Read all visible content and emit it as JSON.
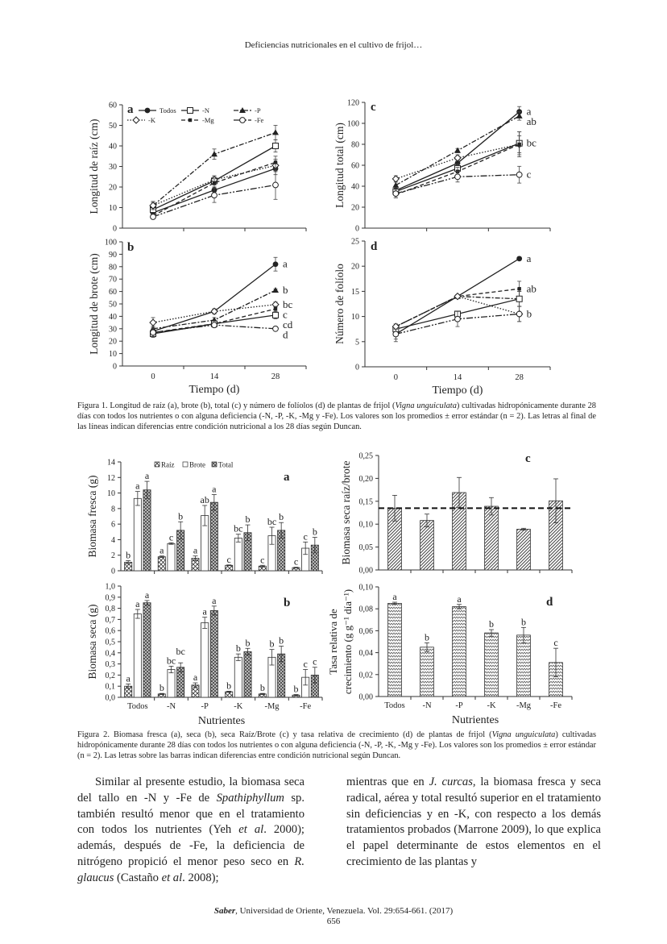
{
  "header": {
    "running_title": "Deficiencias nutricionales en el cultivo de frijol…"
  },
  "figure1": {
    "caption": [
      "Figura 1. Longitud de raíz (a), brote (b), total (c) y número de folíolos (d) de plantas de frijol (",
      "Vigna unguiculata",
      ") cultivadas hidropónicamente durante 28 días con todos los nutrientes o con alguna deficiencia (-N, -P, -K, -Mg y -Fe). Los valores son los promedios ± error estándar (n = 2). Las letras al final de las líneas indican diferencias entre condición nutricional a los 28 días según Duncan."
    ]
  },
  "figure2": {
    "caption": [
      "Figura 2. Biomasa fresca (a), seca (b), seca Raíz/Brote (c) y tasa relativa de crecimiento (d) de plantas de frijol (",
      "Vigna unguiculata",
      ") cultivadas hidropónicamente durante 28 días con todos los nutrientes o con alguna deficiencia (-N, -P, -K, -Mg y -Fe). Los valores son los promedios ± error estándar (n = 2). Las letras sobre las barras indican diferencias entre condición nutricional según Duncan."
    ]
  },
  "chart_data": [
    {
      "type": "line",
      "panel": "a",
      "ylabel": "Longitud de raíz (cm)",
      "xlabel": "",
      "x": [
        0,
        14,
        28
      ],
      "ylim": [
        0,
        60
      ],
      "y_ticks": [
        "0",
        "10",
        "20",
        "30",
        "40",
        "50",
        "60"
      ],
      "legend": "top-left",
      "series": [
        {
          "name": "Todos",
          "marker": "circle-filled",
          "dash": "solid",
          "values": [
            7.5,
            18.5,
            29
          ],
          "err": [
            1,
            1.5,
            3
          ]
        },
        {
          "name": "-N",
          "marker": "square-open",
          "dash": "solid",
          "values": [
            9,
            23,
            40
          ],
          "err": [
            1,
            2,
            3
          ]
        },
        {
          "name": "-P",
          "marker": "triangle-filled",
          "dash": "dash-dot",
          "values": [
            11,
            36,
            46.5
          ],
          "err": [
            1.5,
            2.5,
            3.5
          ]
        },
        {
          "name": "-K",
          "marker": "diamond-open",
          "dash": "dotted",
          "values": [
            11,
            23.5,
            30.5
          ],
          "err": [
            2,
            2,
            3
          ]
        },
        {
          "name": "-Mg",
          "marker": "square-small-filled",
          "dash": "dashed",
          "values": [
            6,
            22,
            32
          ],
          "err": [
            1,
            2,
            3
          ]
        },
        {
          "name": "-Fe",
          "marker": "circle-open",
          "dash": "dash-dot-dot",
          "values": [
            5.5,
            16,
            21
          ],
          "err": [
            1,
            3.5,
            7
          ]
        }
      ]
    },
    {
      "type": "line",
      "panel": "b",
      "ylabel": "Longitud de brote (cm)",
      "xlabel": "Tiempo (d)",
      "x": [
        0,
        14,
        28
      ],
      "x_tick_labels": [
        "0",
        "14",
        "28"
      ],
      "ylim": [
        0,
        100
      ],
      "y_ticks": [
        "0",
        "10",
        "20",
        "30",
        "40",
        "50",
        "60",
        "70",
        "80",
        "90",
        "100"
      ],
      "series": [
        {
          "name": "Todos",
          "marker": "circle-filled",
          "dash": "solid",
          "values": [
            28,
            44,
            82
          ],
          "err": [
            2,
            2,
            5.5
          ],
          "end_label": "a"
        },
        {
          "name": "-P",
          "marker": "triangle-filled",
          "dash": "dash-dot",
          "values": [
            30,
            37,
            61
          ],
          "err": [
            2,
            2,
            1
          ],
          "end_label": "b"
        },
        {
          "name": "-K",
          "marker": "diamond-open",
          "dash": "dotted",
          "values": [
            35,
            44,
            49.5
          ],
          "err": [
            4,
            2,
            2
          ],
          "end_label": "bc"
        },
        {
          "name": "-Mg",
          "marker": "square-small-filled",
          "dash": "dashed",
          "values": [
            27,
            34,
            46
          ],
          "err": [
            2,
            2,
            2
          ],
          "end_label": "c"
        },
        {
          "name": "-N",
          "marker": "square-open",
          "dash": "solid",
          "values": [
            26,
            34,
            41
          ],
          "err": [
            3,
            2,
            3
          ],
          "end_label": "cd"
        },
        {
          "name": "-Fe",
          "marker": "circle-open",
          "dash": "dash-dot-dot",
          "values": [
            27,
            33,
            30
          ],
          "err": [
            3,
            2,
            1
          ],
          "end_label": "d"
        }
      ]
    },
    {
      "type": "line",
      "panel": "c",
      "ylabel": "Longitud total (cm)",
      "xlabel": "",
      "x": [
        0,
        14,
        28
      ],
      "ylim": [
        0,
        120
      ],
      "y_ticks": [
        "0",
        "20",
        "40",
        "60",
        "80",
        "100",
        "120"
      ],
      "series": [
        {
          "name": "Todos",
          "marker": "circle-filled",
          "dash": "solid",
          "values": [
            36,
            62,
            111
          ],
          "err": [
            3,
            3,
            5
          ],
          "end_label": "a"
        },
        {
          "name": "-P",
          "marker": "triangle-filled",
          "dash": "dash-dot",
          "values": [
            41,
            74,
            107
          ],
          "err": [
            3,
            2,
            4
          ],
          "end_label": "ab"
        },
        {
          "name": "-K",
          "marker": "diamond-open",
          "dash": "dotted",
          "values": [
            47,
            67,
            80
          ],
          "err": [
            3,
            3,
            12
          ]
        },
        {
          "name": "-N",
          "marker": "square-open",
          "dash": "solid",
          "values": [
            35,
            57,
            81
          ],
          "err": [
            3,
            4,
            11
          ],
          "end_label": "bc"
        },
        {
          "name": "-Mg",
          "marker": "square-small-filled",
          "dash": "dashed",
          "values": [
            32,
            54,
            80
          ],
          "err": [
            3,
            4,
            8
          ]
        },
        {
          "name": "-Fe",
          "marker": "circle-open",
          "dash": "dash-dot-dot",
          "values": [
            33,
            49,
            51
          ],
          "err": [
            4,
            5,
            8
          ],
          "end_label": "c"
        }
      ]
    },
    {
      "type": "line",
      "panel": "d",
      "ylabel": "Número de folíolo",
      "xlabel": "Tiempo (d)",
      "x": [
        0,
        14,
        28
      ],
      "x_tick_labels": [
        "0",
        "14",
        "28"
      ],
      "ylim": [
        0,
        25
      ],
      "y_ticks": [
        "0",
        "5",
        "10",
        "15",
        "20",
        "25"
      ],
      "series": [
        {
          "name": "Todos",
          "marker": "circle-filled",
          "dash": "solid",
          "values": [
            6.5,
            14,
            21.5
          ],
          "err": [
            1.5,
            0.3,
            0.3
          ],
          "end_label": "a"
        },
        {
          "name": "-Mg",
          "marker": "square-small-filled",
          "dash": "dashed",
          "values": [
            8,
            14,
            15.5
          ],
          "err": [
            0.5,
            0.3,
            1.5
          ],
          "end_label": "ab"
        },
        {
          "name": "-P",
          "marker": "triangle-filled",
          "dash": "dash-dot",
          "values": [
            8,
            14,
            13.5
          ],
          "err": [
            0.5,
            0.3,
            1.5
          ]
        },
        {
          "name": "-N",
          "marker": "square-open",
          "dash": "solid",
          "values": [
            7.5,
            10.5,
            13.5
          ],
          "err": [
            0.5,
            0.5,
            1.5
          ]
        },
        {
          "name": "-K",
          "marker": "diamond-open",
          "dash": "dotted",
          "values": [
            8,
            14,
            10.5
          ],
          "err": [
            0.5,
            0.3,
            1.5
          ],
          "end_label": "b"
        },
        {
          "name": "-Fe",
          "marker": "circle-open",
          "dash": "dash-dot-dot",
          "values": [
            6.5,
            9.5,
            10.5
          ],
          "err": [
            1,
            1.5,
            1.5
          ]
        }
      ]
    },
    {
      "type": "bar",
      "panel": "a",
      "ylabel": "Biomasa fresca (g)",
      "xlabel": "",
      "categories": [
        "Todos",
        "-N",
        "-P",
        "-K",
        "-Mg",
        "-Fe"
      ],
      "ylim": [
        0,
        14
      ],
      "y_ticks": [
        "0",
        "2",
        "4",
        "6",
        "8",
        "10",
        "12",
        "14"
      ],
      "legend": "top",
      "series": [
        {
          "name": "Raíz",
          "pattern": "crosshatch",
          "values": [
            1.1,
            1.8,
            1.6,
            0.7,
            0.6,
            0.4
          ],
          "err": [
            0.2,
            0.1,
            0.3,
            0.05,
            0.1,
            0.05
          ],
          "letters": [
            "b",
            "a",
            "a",
            "c",
            "c",
            "c"
          ]
        },
        {
          "name": "Brote",
          "pattern": "white",
          "values": [
            9.3,
            3.5,
            7.1,
            4.2,
            4.5,
            2.9
          ],
          "err": [
            0.9,
            0.1,
            1.3,
            0.5,
            1.1,
            0.8
          ],
          "letters": [
            "a",
            "c",
            "ab",
            "bc",
            "bc",
            "c"
          ]
        },
        {
          "name": "Total",
          "pattern": "dots",
          "values": [
            10.4,
            5.2,
            8.8,
            4.9,
            5.2,
            3.3
          ],
          "err": [
            1.1,
            1.1,
            1.0,
            1.0,
            1.0,
            1.0
          ],
          "letters": [
            "a",
            "b",
            "a",
            "b",
            "b",
            "b"
          ]
        }
      ]
    },
    {
      "type": "bar",
      "panel": "b",
      "ylabel": "Biomasa seca (g)",
      "xlabel": "Nutrientes",
      "categories": [
        "Todos",
        "-N",
        "-P",
        "-K",
        "-Mg",
        "-Fe"
      ],
      "ylim": [
        0,
        1.0
      ],
      "y_ticks": [
        "0,0",
        "0,1",
        "0,2",
        "0,3",
        "0,4",
        "0,5",
        "0,6",
        "0,7",
        "0,8",
        "0,9",
        "1,0"
      ],
      "series": [
        {
          "name": "Raíz",
          "pattern": "crosshatch",
          "values": [
            0.1,
            0.03,
            0.11,
            0.05,
            0.03,
            0.02
          ],
          "err": [
            0.02,
            0.005,
            0.02,
            0.005,
            0.005,
            0.005
          ],
          "letters": [
            "a",
            "b",
            "a",
            "b",
            "b",
            "b"
          ]
        },
        {
          "name": "Brote",
          "pattern": "white",
          "values": [
            0.75,
            0.25,
            0.67,
            0.36,
            0.36,
            0.18
          ],
          "err": [
            0.04,
            0.03,
            0.05,
            0.03,
            0.07,
            0.07
          ],
          "letters": [
            "a",
            "bc",
            "a",
            "b",
            "b",
            "c"
          ]
        },
        {
          "name": "Total",
          "pattern": "dots",
          "values": [
            0.85,
            0.27,
            0.78,
            0.41,
            0.39,
            0.2
          ],
          "err": [
            0.02,
            0.04,
            0.04,
            0.03,
            0.07,
            0.07
          ],
          "letters": [
            "a",
            "bc",
            "a",
            "b",
            "b",
            "c"
          ]
        }
      ]
    },
    {
      "type": "bar",
      "panel": "c",
      "ylabel": "Biomasa seca raíz/brote",
      "xlabel": "",
      "categories": [
        "Todos",
        "-N",
        "-P",
        "-K",
        "-Mg",
        "-Fe"
      ],
      "ylim": [
        0,
        0.25
      ],
      "y_ticks": [
        "0,00",
        "0,05",
        "0,10",
        "0,15",
        "0,20",
        "0,25"
      ],
      "reference_line": 0.135,
      "series": [
        {
          "pattern": "diagonal",
          "values": [
            0.135,
            0.108,
            0.169,
            0.139,
            0.089,
            0.151
          ],
          "err": [
            0.028,
            0.014,
            0.033,
            0.019,
            0.002,
            0.048
          ]
        }
      ]
    },
    {
      "type": "bar",
      "panel": "d",
      "ylabel": [
        "Tasa relativa de",
        "crecimiento (g g⁻¹ día⁻¹)"
      ],
      "xlabel": "Nutrientes",
      "categories": [
        "Todos",
        "-N",
        "-P",
        "-K",
        "-Mg",
        "-Fe"
      ],
      "ylim": [
        0,
        0.1
      ],
      "y_ticks": [
        "0,00",
        "0,02",
        "0,04",
        "0,06",
        "0,08",
        "0,10"
      ],
      "series": [
        {
          "pattern": "wavy",
          "values": [
            0.085,
            0.045,
            0.082,
            0.058,
            0.056,
            0.031
          ],
          "err": [
            0.001,
            0.004,
            0.002,
            0.003,
            0.007,
            0.013
          ],
          "letters": [
            "a",
            "b",
            "a",
            "b",
            "b",
            "c"
          ]
        }
      ]
    }
  ],
  "body": {
    "col1": [
      "Similar al presente estudio, la biomasa seca del tallo en -N y -Fe de ",
      "Spathiphyllum",
      " sp. también resultó menor que en el tratamiento con todos los nutrientes (Yeh ",
      "et al",
      ". 2000); además, después de -Fe, la deficiencia de nitrógeno propició el menor peso seco en ",
      "R. glaucus",
      " (Castaño ",
      "et al",
      ". 2008);"
    ],
    "col2": [
      "mientras que en ",
      "J. curcas",
      ", la biomasa fresca y seca radical, aérea y total resultó superior en el tratamiento sin deficiencias y en -K, con respecto a los demás tratamientos probados (Marrone 2009), lo que explica el papel determinante de estos elementos en el crecimiento de las plantas y"
    ]
  },
  "footer": {
    "journal": "Saber",
    "citation": ", Universidad de Oriente, Venezuela. Vol. 29:654-661. (2017)",
    "page": "656"
  }
}
